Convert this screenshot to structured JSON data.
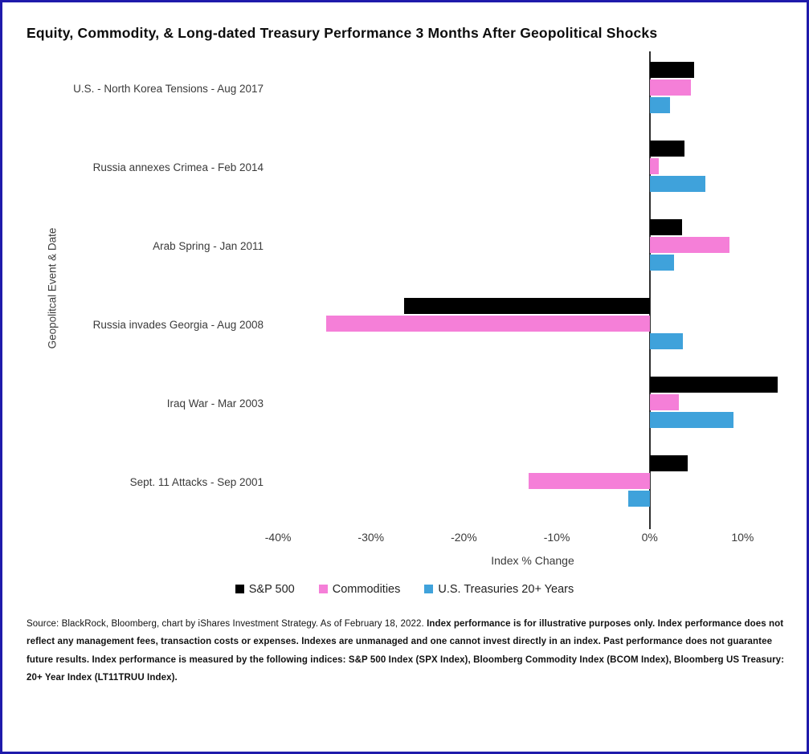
{
  "title": "Equity, Commodity, & Long-dated Treasury Performance 3 Months After Geopolitical Shocks",
  "chart_data": {
    "type": "bar",
    "orientation": "horizontal",
    "title": "Equity, Commodity, & Long-dated Treasury Performance 3 Months After Geopolitical Shocks",
    "xlabel": "Index % Change",
    "ylabel": "Geopolitcal Event & Date",
    "grid": false,
    "legend_position": "bottom",
    "xlim": [
      -40.7,
      15.5
    ],
    "x_ticks": [
      {
        "value": -40,
        "label": "-40%"
      },
      {
        "value": -30,
        "label": "-30%"
      },
      {
        "value": -20,
        "label": "-20%"
      },
      {
        "value": -10,
        "label": "-10%"
      },
      {
        "value": 0,
        "label": "0%"
      },
      {
        "value": 10,
        "label": "10%"
      }
    ],
    "categories": [
      "U.S. - North Korea Tensions - Aug 2017",
      "Russia annexes Crimea - Feb 2014",
      "Arab Spring - Jan 2011",
      "Russia invades Georgia - Aug 2008",
      "Iraq War - Mar 2003",
      "Sept. 11 Attacks - Sep 2001"
    ],
    "series": [
      {
        "name": "S&P 500",
        "color": "#000000",
        "values": [
          4.8,
          3.7,
          3.5,
          -26.4,
          13.8,
          4.1
        ]
      },
      {
        "name": "Commodities",
        "color": "#f57fd8",
        "values": [
          4.4,
          1.0,
          8.6,
          -34.8,
          3.1,
          -13.0
        ]
      },
      {
        "name": "U.S. Treasuries 20+ Years",
        "color": "#3fa2db",
        "values": [
          2.2,
          6.0,
          2.6,
          3.6,
          9.0,
          -2.3
        ]
      }
    ],
    "zero_line_color": "#2e2e2e"
  },
  "footer": {
    "source_text": "Source: BlackRock, Bloomberg, chart by iShares Investment Strategy. As of February 18, 2022. ",
    "disclaimer_text": "Index performance is for illustrative purposes only. Index performance does not reflect any management fees, transaction costs or expenses. Indexes are unmanaged and one cannot invest directly in an index. Past performance does not guarantee future results. Index performance is measured by the following indices: S&P 500 Index (SPX Index), Bloomberg Commodity Index (BCOM Index), Bloomberg US Treasury: 20+ Year Index (LT11TRUU Index)."
  },
  "page": {
    "background": "#ffffff",
    "border_color": "#1f1aab"
  }
}
